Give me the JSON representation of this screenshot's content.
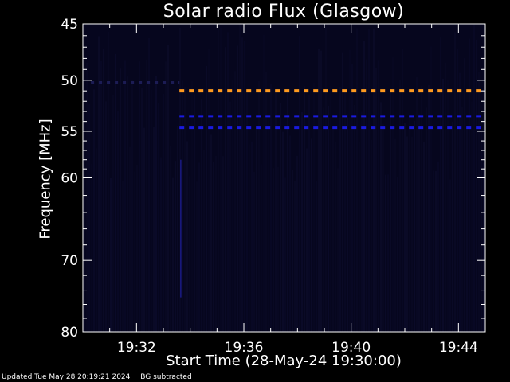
{
  "chart_data": {
    "type": "heatmap",
    "title": "Solar radio Flux (Glasgow)",
    "xlabel": "Start Time (28-May-24 19:30:00)",
    "ylabel": "Frequency [MHz]",
    "x_ticks": [
      "19:32",
      "19:36",
      "19:40",
      "19:44"
    ],
    "x_tick_minutes": [
      2,
      6,
      10,
      14
    ],
    "xlim_minutes": [
      0,
      15
    ],
    "y_ticks": [
      45,
      50,
      55,
      60,
      70,
      80
    ],
    "ylim": [
      45,
      80
    ],
    "y_scale": "log",
    "background_color": "#06061e",
    "bands": [
      {
        "freq_mhz": 51.0,
        "start_min": 3.6,
        "end_min": 15.0,
        "color": "#ff9a1f",
        "intensity": "high"
      },
      {
        "freq_mhz": 53.5,
        "start_min": 3.6,
        "end_min": 14.9,
        "color": "#1a1ae0",
        "intensity": "low"
      },
      {
        "freq_mhz": 54.6,
        "start_min": 3.6,
        "end_min": 15.0,
        "color": "#1a1ae0",
        "intensity": "medium"
      },
      {
        "freq_mhz": 50.2,
        "start_min": 0.3,
        "end_min": 3.6,
        "color": "#1c1c55",
        "intensity": "faint"
      }
    ]
  },
  "footer": {
    "updated": "Updated Tue May 28 20:19:21 2024",
    "note": "BG subtracted"
  }
}
